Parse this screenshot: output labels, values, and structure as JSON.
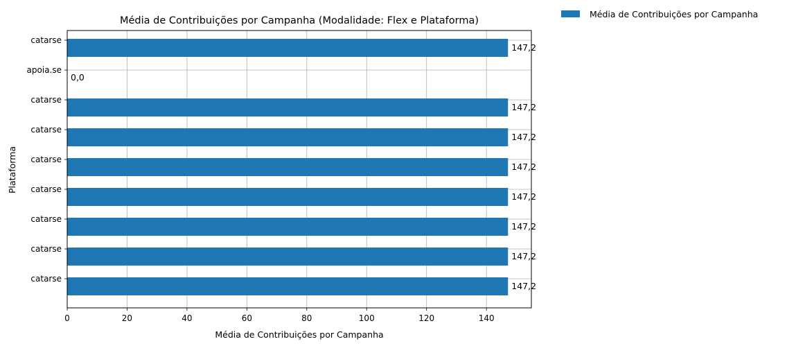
{
  "chart_data": {
    "type": "bar",
    "orientation": "horizontal",
    "title": "Média de Contribuições por Campanha (Modalidade: Flex e Plataforma)",
    "xlabel": "Média de Contribuições por Campanha",
    "ylabel": "Plataforma",
    "categories": [
      "catarse",
      "catarse",
      "catarse",
      "catarse",
      "catarse",
      "catarse",
      "catarse",
      "apoia.se",
      "catarse"
    ],
    "series": [
      {
        "name": "Média de Contribuições por Campanha",
        "values": [
          147.2,
          147.2,
          147.2,
          147.2,
          147.2,
          147.2,
          147.2,
          0.0,
          147.2
        ],
        "labels": [
          "147,2",
          "147,2",
          "147,2",
          "147,2",
          "147,2",
          "147,2",
          "147,2",
          "0,0",
          "147,2"
        ],
        "color": "#1f77b4"
      }
    ],
    "xlim": [
      0,
      155
    ],
    "xticks": [
      0,
      20,
      40,
      60,
      80,
      100,
      120,
      140
    ],
    "grid": true,
    "legend": "outside-top-right"
  }
}
